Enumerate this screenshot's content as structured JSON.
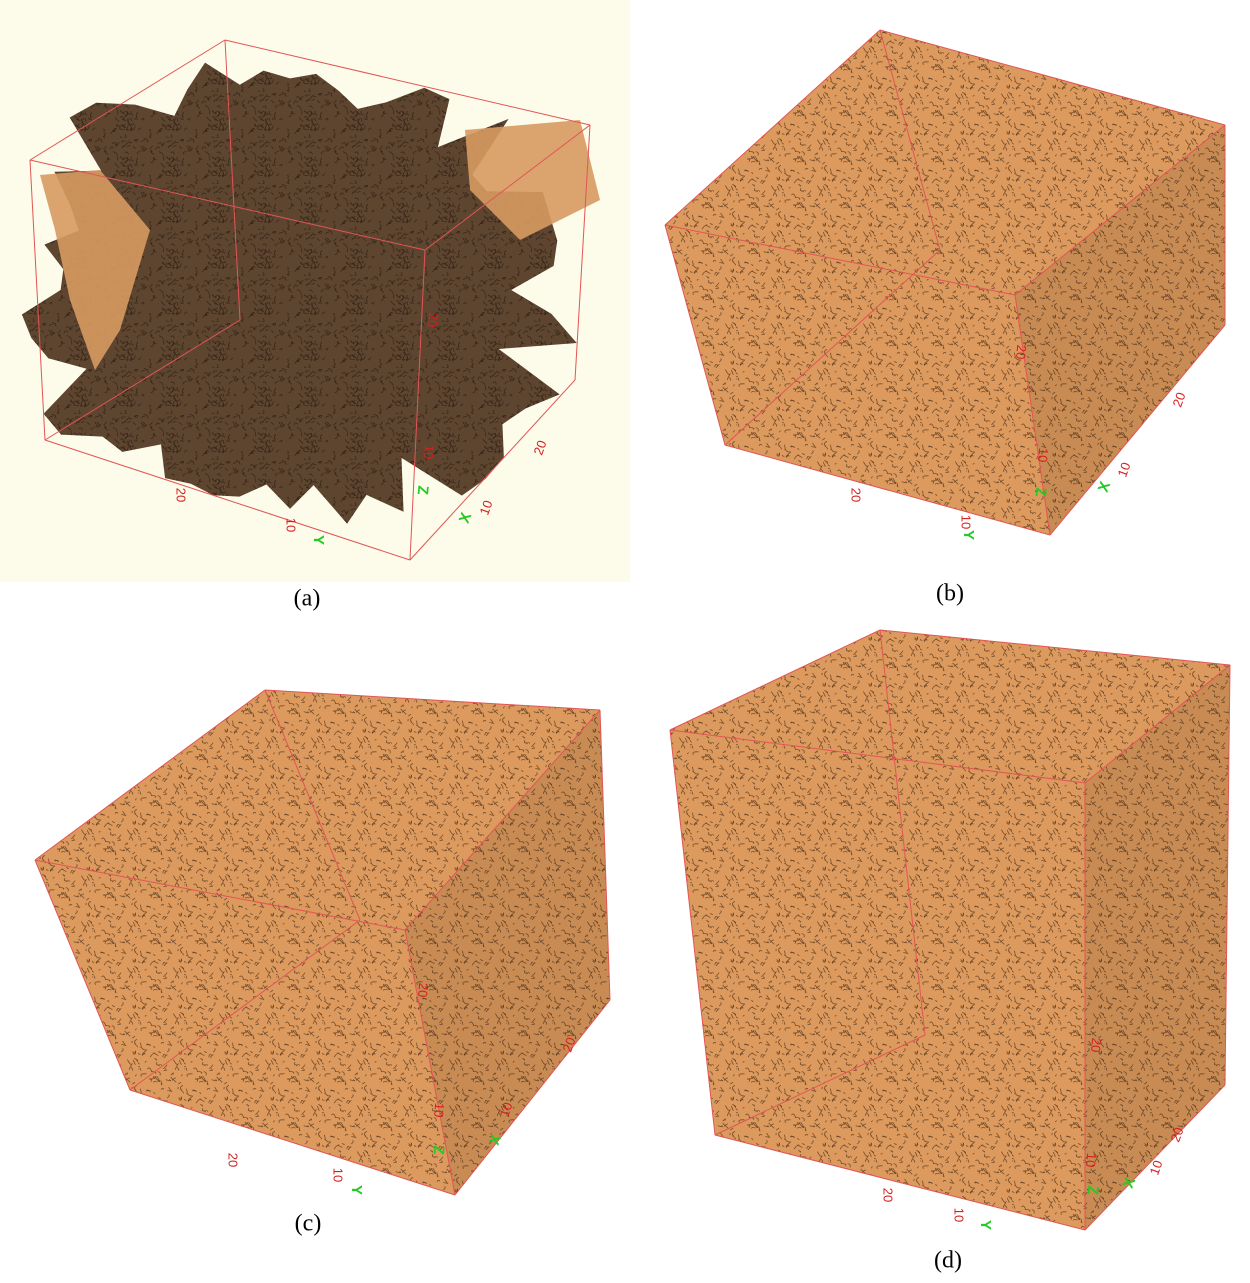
{
  "panels": [
    {
      "caption": "(a)",
      "axes": {
        "x": {
          "label": "X",
          "ticks": [
            10,
            20
          ]
        },
        "y": {
          "label": "Y",
          "ticks": [
            10,
            20
          ]
        },
        "z": {
          "label": "Z",
          "ticks": [
            10,
            20
          ]
        }
      }
    },
    {
      "caption": "(b)",
      "axes": {
        "x": {
          "label": "X",
          "ticks": [
            10,
            20
          ]
        },
        "y": {
          "label": "Y",
          "ticks": [
            10,
            20
          ]
        },
        "z": {
          "label": "Z",
          "ticks": [
            10,
            20
          ]
        }
      }
    },
    {
      "caption": "(c)",
      "axes": {
        "x": {
          "label": "X",
          "ticks": [
            10,
            20
          ]
        },
        "y": {
          "label": "Y",
          "ticks": [
            10,
            20
          ]
        },
        "z": {
          "label": "Z",
          "ticks": [
            10,
            20
          ]
        }
      }
    },
    {
      "caption": "(d)",
      "axes": {
        "x": {
          "label": "X",
          "ticks": [
            10,
            20
          ]
        },
        "y": {
          "label": "Y",
          "ticks": [
            10,
            20
          ]
        },
        "z": {
          "label": "Z",
          "ticks": [
            10,
            20
          ]
        }
      }
    }
  ]
}
